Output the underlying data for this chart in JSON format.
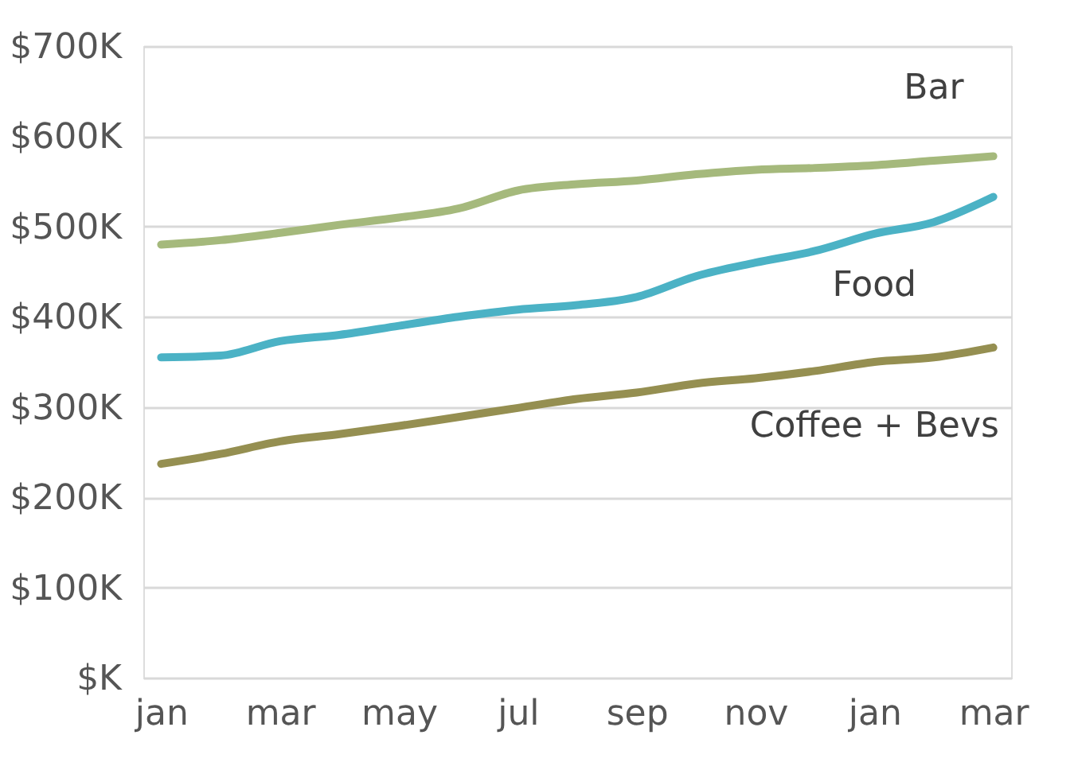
{
  "chart_data": {
    "type": "line",
    "categories": [
      "jan",
      null,
      "mar",
      null,
      "may",
      null,
      "jul",
      null,
      "sep",
      null,
      "nov",
      null,
      "jan",
      null,
      "mar"
    ],
    "series": [
      {
        "name": "Bar",
        "color": "#a5b97c",
        "values": [
          480,
          485,
          493,
          502,
          510,
          520,
          540,
          547,
          551,
          558,
          563,
          565,
          568,
          573,
          578
        ]
      },
      {
        "name": "Food",
        "color": "#4bb2c5",
        "values": [
          355,
          357,
          373,
          380,
          390,
          400,
          408,
          413,
          422,
          445,
          460,
          473,
          492,
          505,
          533
        ]
      },
      {
        "name": "Coffee + Bevs",
        "color": "#958f51",
        "values": [
          237,
          248,
          262,
          270,
          279,
          289,
          299,
          309,
          316,
          326,
          332,
          340,
          350,
          355,
          366
        ]
      }
    ],
    "ylim": [
      0,
      700
    ],
    "yticks": [
      {
        "value": 0,
        "label": "$K"
      },
      {
        "value": 100,
        "label": "$100K"
      },
      {
        "value": 200,
        "label": "$200K"
      },
      {
        "value": 300,
        "label": "$300K"
      },
      {
        "value": 400,
        "label": "$400K"
      },
      {
        "value": 500,
        "label": "$500K"
      },
      {
        "value": 600,
        "label": "$600K"
      },
      {
        "value": 700,
        "label": "$700K"
      }
    ],
    "grid": "y",
    "legend": false,
    "marker": "none",
    "line_style": "solid"
  }
}
